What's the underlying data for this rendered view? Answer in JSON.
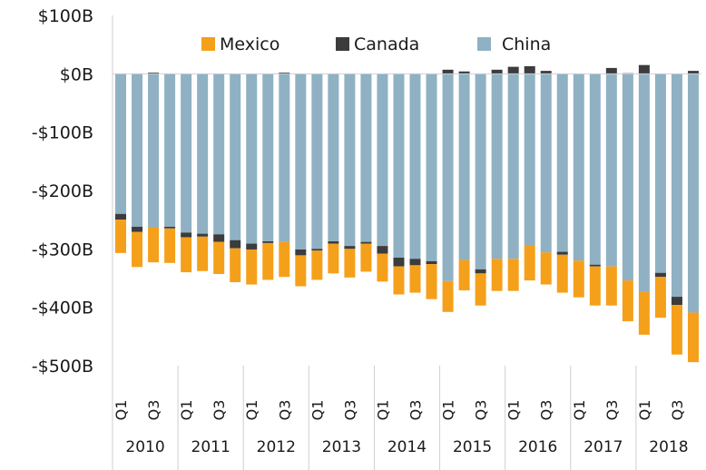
{
  "chart_data": {
    "type": "bar",
    "stacked": true,
    "title": "",
    "xlabel": "",
    "ylabel": "",
    "ylim": [
      -500,
      100
    ],
    "y_unit": "billions of USD",
    "y_ticks": [
      100,
      0,
      -100,
      -200,
      -300,
      -400,
      -500
    ],
    "y_tick_labels": [
      "$100B",
      "$0B",
      "-$100B",
      "-$200B",
      "-$300B",
      "-$400B",
      "-$500B"
    ],
    "grid": false,
    "legend_position": "top",
    "legend": [
      {
        "name": "Mexico",
        "color": "#F5A01A"
      },
      {
        "name": "Canada",
        "color": "#3C3C3C"
      },
      {
        "name": "China",
        "color": "#8FB1C3"
      }
    ],
    "years": [
      "2010",
      "2011",
      "2012",
      "2013",
      "2014",
      "2015",
      "2016",
      "2017",
      "2018"
    ],
    "quarter_tick_labels": [
      "Q1",
      "Q3"
    ],
    "categories": [
      "2010 Q1",
      "2010 Q2",
      "2010 Q3",
      "2010 Q4",
      "2011 Q1",
      "2011 Q2",
      "2011 Q3",
      "2011 Q4",
      "2012 Q1",
      "2012 Q2",
      "2012 Q3",
      "2012 Q4",
      "2013 Q1",
      "2013 Q2",
      "2013 Q3",
      "2013 Q4",
      "2014 Q1",
      "2014 Q2",
      "2014 Q3",
      "2014 Q4",
      "2015 Q1",
      "2015 Q2",
      "2015 Q3",
      "2015 Q4",
      "2016 Q1",
      "2016 Q2",
      "2016 Q3",
      "2016 Q4",
      "2017 Q1",
      "2017 Q2",
      "2017 Q3",
      "2017 Q4",
      "2018 Q1",
      "2018 Q2",
      "2018 Q3",
      "2018 Q4"
    ],
    "series": [
      {
        "name": "China",
        "color": "#8FB1C3",
        "values": [
          -240,
          -262,
          -263,
          -262,
          -272,
          -274,
          -275,
          -285,
          -291,
          -287,
          -288,
          -301,
          -300,
          -287,
          -295,
          -288,
          -295,
          -315,
          -317,
          -321,
          -355,
          -319,
          -335,
          -317,
          -317,
          -294,
          -306,
          -305,
          -320,
          -327,
          -330,
          -354,
          -374,
          -341,
          -382,
          -409
        ]
      },
      {
        "name": "Canada",
        "values": [
          -10,
          -9,
          2,
          -3,
          -8,
          -5,
          -13,
          -14,
          -10,
          -3,
          2,
          -10,
          -3,
          -4,
          -5,
          -3,
          -13,
          -15,
          -11,
          -5,
          7,
          4,
          -7,
          7,
          12,
          13,
          5,
          -5,
          0,
          -3,
          10,
          1,
          15,
          -7,
          -14,
          5
        ]
      },
      {
        "name": "Mexico",
        "values": [
          -57,
          -60,
          -60,
          -59,
          -60,
          -59,
          -55,
          -58,
          -60,
          -63,
          -60,
          -53,
          -50,
          -51,
          -49,
          -48,
          -48,
          -48,
          -47,
          -60,
          -53,
          -52,
          -55,
          -55,
          -55,
          -60,
          -55,
          -65,
          -63,
          -67,
          -67,
          -70,
          -73,
          -70,
          -85,
          -85
        ]
      }
    ]
  }
}
